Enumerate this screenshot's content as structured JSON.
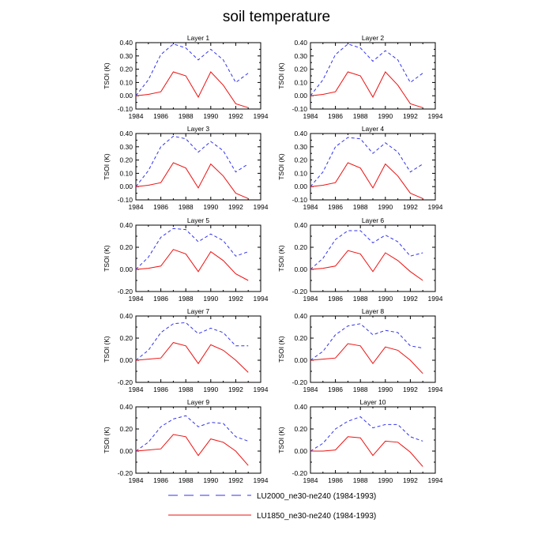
{
  "figure_title": "soil temperature",
  "legend": {
    "lu2000_label": "LU2000_ne30-ne240 (1984-1993)",
    "lu1850_label": "LU1850_ne30-ne240 (1984-1993)"
  },
  "colors": {
    "lu2000": "#3333ee",
    "lu1850": "#ee1111"
  },
  "chart_data": [
    {
      "type": "line",
      "title": "Layer 1",
      "ylabel": "TSOI  (K)",
      "xlim": [
        1984,
        1994
      ],
      "ylim": [
        -0.1,
        0.4
      ],
      "xticks": [
        1984,
        1986,
        1988,
        1990,
        1992,
        1994
      ],
      "yticks": [
        -0.1,
        0.0,
        0.1,
        0.2,
        0.3,
        0.4
      ],
      "x": [
        1984,
        1985,
        1986,
        1987,
        1988,
        1989,
        1990,
        1991,
        1992,
        1993
      ],
      "series": [
        {
          "name": "LU2000_ne30-ne240 (1984-1993)",
          "style": "dashed",
          "values": [
            0.0,
            0.12,
            0.31,
            0.39,
            0.36,
            0.27,
            0.35,
            0.27,
            0.1,
            0.17
          ]
        },
        {
          "name": "LU1850_ne30-ne240 (1984-1993)",
          "style": "solid",
          "values": [
            0.0,
            0.01,
            0.03,
            0.18,
            0.15,
            -0.01,
            0.18,
            0.08,
            -0.06,
            -0.09
          ]
        }
      ]
    },
    {
      "type": "line",
      "title": "Layer 2",
      "ylabel": "TSOI  (K)",
      "xlim": [
        1984,
        1994
      ],
      "ylim": [
        -0.1,
        0.4
      ],
      "xticks": [
        1984,
        1986,
        1988,
        1990,
        1992,
        1994
      ],
      "yticks": [
        -0.1,
        0.0,
        0.1,
        0.2,
        0.3,
        0.4
      ],
      "x": [
        1984,
        1985,
        1986,
        1987,
        1988,
        1989,
        1990,
        1991,
        1992,
        1993
      ],
      "series": [
        {
          "name": "LU2000_ne30-ne240 (1984-1993)",
          "style": "dashed",
          "values": [
            0.0,
            0.12,
            0.31,
            0.39,
            0.36,
            0.26,
            0.34,
            0.27,
            0.1,
            0.17
          ]
        },
        {
          "name": "LU1850_ne30-ne240 (1984-1993)",
          "style": "solid",
          "values": [
            0.0,
            0.01,
            0.03,
            0.18,
            0.15,
            -0.01,
            0.18,
            0.08,
            -0.06,
            -0.09
          ]
        }
      ]
    },
    {
      "type": "line",
      "title": "Layer 3",
      "ylabel": "TSOI  (K)",
      "xlim": [
        1984,
        1994
      ],
      "ylim": [
        -0.1,
        0.4
      ],
      "xticks": [
        1984,
        1986,
        1988,
        1990,
        1992,
        1994
      ],
      "yticks": [
        -0.1,
        0.0,
        0.1,
        0.2,
        0.3,
        0.4
      ],
      "x": [
        1984,
        1985,
        1986,
        1987,
        1988,
        1989,
        1990,
        1991,
        1992,
        1993
      ],
      "series": [
        {
          "name": "LU2000_ne30-ne240 (1984-1993)",
          "style": "dashed",
          "values": [
            0.0,
            0.12,
            0.3,
            0.38,
            0.36,
            0.26,
            0.34,
            0.27,
            0.11,
            0.17
          ]
        },
        {
          "name": "LU1850_ne30-ne240 (1984-1993)",
          "style": "solid",
          "values": [
            0.0,
            0.01,
            0.03,
            0.18,
            0.14,
            -0.01,
            0.17,
            0.08,
            -0.05,
            -0.09
          ]
        }
      ]
    },
    {
      "type": "line",
      "title": "Layer 4",
      "ylabel": "TSOI  (K)",
      "xlim": [
        1984,
        1994
      ],
      "ylim": [
        -0.1,
        0.4
      ],
      "xticks": [
        1984,
        1986,
        1988,
        1990,
        1992,
        1994
      ],
      "yticks": [
        -0.1,
        0.0,
        0.1,
        0.2,
        0.3,
        0.4
      ],
      "x": [
        1984,
        1985,
        1986,
        1987,
        1988,
        1989,
        1990,
        1991,
        1992,
        1993
      ],
      "series": [
        {
          "name": "LU2000_ne30-ne240 (1984-1993)",
          "style": "dashed",
          "values": [
            0.0,
            0.11,
            0.3,
            0.37,
            0.36,
            0.25,
            0.33,
            0.26,
            0.11,
            0.17
          ]
        },
        {
          "name": "LU1850_ne30-ne240 (1984-1993)",
          "style": "solid",
          "values": [
            0.0,
            0.01,
            0.03,
            0.18,
            0.14,
            -0.01,
            0.17,
            0.08,
            -0.05,
            -0.09
          ]
        }
      ]
    },
    {
      "type": "line",
      "title": "Layer 5",
      "ylabel": "TSOI  (K)",
      "xlim": [
        1984,
        1994
      ],
      "ylim": [
        -0.2,
        0.4
      ],
      "xticks": [
        1984,
        1986,
        1988,
        1990,
        1992,
        1994
      ],
      "yticks": [
        -0.2,
        0.0,
        0.2,
        0.4
      ],
      "x": [
        1984,
        1985,
        1986,
        1987,
        1988,
        1989,
        1990,
        1991,
        1992,
        1993
      ],
      "series": [
        {
          "name": "LU2000_ne30-ne240 (1984-1993)",
          "style": "dashed",
          "values": [
            0.0,
            0.11,
            0.29,
            0.37,
            0.36,
            0.25,
            0.32,
            0.26,
            0.12,
            0.16
          ]
        },
        {
          "name": "LU1850_ne30-ne240 (1984-1993)",
          "style": "solid",
          "values": [
            0.0,
            0.01,
            0.03,
            0.18,
            0.14,
            -0.02,
            0.16,
            0.08,
            -0.04,
            -0.1
          ]
        }
      ]
    },
    {
      "type": "line",
      "title": "Layer 6",
      "ylabel": "TSOI  (K)",
      "xlim": [
        1984,
        1994
      ],
      "ylim": [
        -0.2,
        0.4
      ],
      "xticks": [
        1984,
        1986,
        1988,
        1990,
        1992,
        1994
      ],
      "yticks": [
        -0.2,
        0.0,
        0.2,
        0.4
      ],
      "x": [
        1984,
        1985,
        1986,
        1987,
        1988,
        1989,
        1990,
        1991,
        1992,
        1993
      ],
      "series": [
        {
          "name": "LU2000_ne30-ne240 (1984-1993)",
          "style": "dashed",
          "values": [
            0.0,
            0.1,
            0.27,
            0.35,
            0.35,
            0.24,
            0.31,
            0.25,
            0.12,
            0.15
          ]
        },
        {
          "name": "LU1850_ne30-ne240 (1984-1993)",
          "style": "solid",
          "values": [
            0.0,
            0.01,
            0.03,
            0.17,
            0.14,
            -0.02,
            0.15,
            0.08,
            -0.02,
            -0.1
          ]
        }
      ]
    },
    {
      "type": "line",
      "title": "Layer 7",
      "ylabel": "TSOI  (K)",
      "xlim": [
        1984,
        1994
      ],
      "ylim": [
        -0.2,
        0.4
      ],
      "xticks": [
        1984,
        1986,
        1988,
        1990,
        1992,
        1994
      ],
      "yticks": [
        -0.2,
        0.0,
        0.2,
        0.4
      ],
      "x": [
        1984,
        1985,
        1986,
        1987,
        1988,
        1989,
        1990,
        1991,
        1992,
        1993
      ],
      "series": [
        {
          "name": "LU2000_ne30-ne240 (1984-1993)",
          "style": "dashed",
          "values": [
            0.0,
            0.09,
            0.25,
            0.33,
            0.34,
            0.24,
            0.29,
            0.25,
            0.13,
            0.13
          ]
        },
        {
          "name": "LU1850_ne30-ne240 (1984-1993)",
          "style": "solid",
          "values": [
            0.0,
            0.01,
            0.02,
            0.16,
            0.13,
            -0.03,
            0.14,
            0.09,
            0.0,
            -0.11
          ]
        }
      ]
    },
    {
      "type": "line",
      "title": "Layer 8",
      "ylabel": "TSOI  (K)",
      "xlim": [
        1984,
        1994
      ],
      "ylim": [
        -0.2,
        0.4
      ],
      "xticks": [
        1984,
        1986,
        1988,
        1990,
        1992,
        1994
      ],
      "yticks": [
        -0.2,
        0.0,
        0.2,
        0.4
      ],
      "x": [
        1984,
        1985,
        1986,
        1987,
        1988,
        1989,
        1990,
        1991,
        1992,
        1993
      ],
      "series": [
        {
          "name": "LU2000_ne30-ne240 (1984-1993)",
          "style": "dashed",
          "values": [
            0.0,
            0.08,
            0.23,
            0.31,
            0.33,
            0.23,
            0.27,
            0.25,
            0.13,
            0.11
          ]
        },
        {
          "name": "LU1850_ne30-ne240 (1984-1993)",
          "style": "solid",
          "values": [
            0.0,
            0.01,
            0.02,
            0.15,
            0.13,
            -0.03,
            0.12,
            0.09,
            0.0,
            -0.12
          ]
        }
      ]
    },
    {
      "type": "line",
      "title": "Layer 9",
      "ylabel": "TSOI  (K)",
      "xlim": [
        1984,
        1994
      ],
      "ylim": [
        -0.2,
        0.4
      ],
      "xticks": [
        1984,
        1986,
        1988,
        1990,
        1992,
        1994
      ],
      "yticks": [
        -0.2,
        0.0,
        0.2,
        0.4
      ],
      "x": [
        1984,
        1985,
        1986,
        1987,
        1988,
        1989,
        1990,
        1991,
        1992,
        1993
      ],
      "series": [
        {
          "name": "LU2000_ne30-ne240 (1984-1993)",
          "style": "dashed",
          "values": [
            0.0,
            0.08,
            0.22,
            0.29,
            0.32,
            0.22,
            0.26,
            0.25,
            0.13,
            0.09
          ]
        },
        {
          "name": "LU1850_ne30-ne240 (1984-1993)",
          "style": "solid",
          "values": [
            0.0,
            0.01,
            0.02,
            0.15,
            0.13,
            -0.04,
            0.11,
            0.08,
            0.0,
            -0.13
          ]
        }
      ]
    },
    {
      "type": "line",
      "title": "Layer 10",
      "ylabel": "TSOI  (K)",
      "xlim": [
        1984,
        1994
      ],
      "ylim": [
        -0.2,
        0.4
      ],
      "xticks": [
        1984,
        1986,
        1988,
        1990,
        1992,
        1994
      ],
      "yticks": [
        -0.2,
        0.0,
        0.2,
        0.4
      ],
      "x": [
        1984,
        1985,
        1986,
        1987,
        1988,
        1989,
        1990,
        1991,
        1992,
        1993
      ],
      "series": [
        {
          "name": "LU2000_ne30-ne240 (1984-1993)",
          "style": "dashed",
          "values": [
            0.0,
            0.07,
            0.2,
            0.27,
            0.31,
            0.21,
            0.24,
            0.24,
            0.13,
            0.09
          ]
        },
        {
          "name": "LU1850_ne30-ne240 (1984-1993)",
          "style": "solid",
          "values": [
            0.0,
            0.0,
            0.01,
            0.13,
            0.12,
            -0.04,
            0.09,
            0.08,
            -0.01,
            -0.14
          ]
        }
      ]
    }
  ]
}
